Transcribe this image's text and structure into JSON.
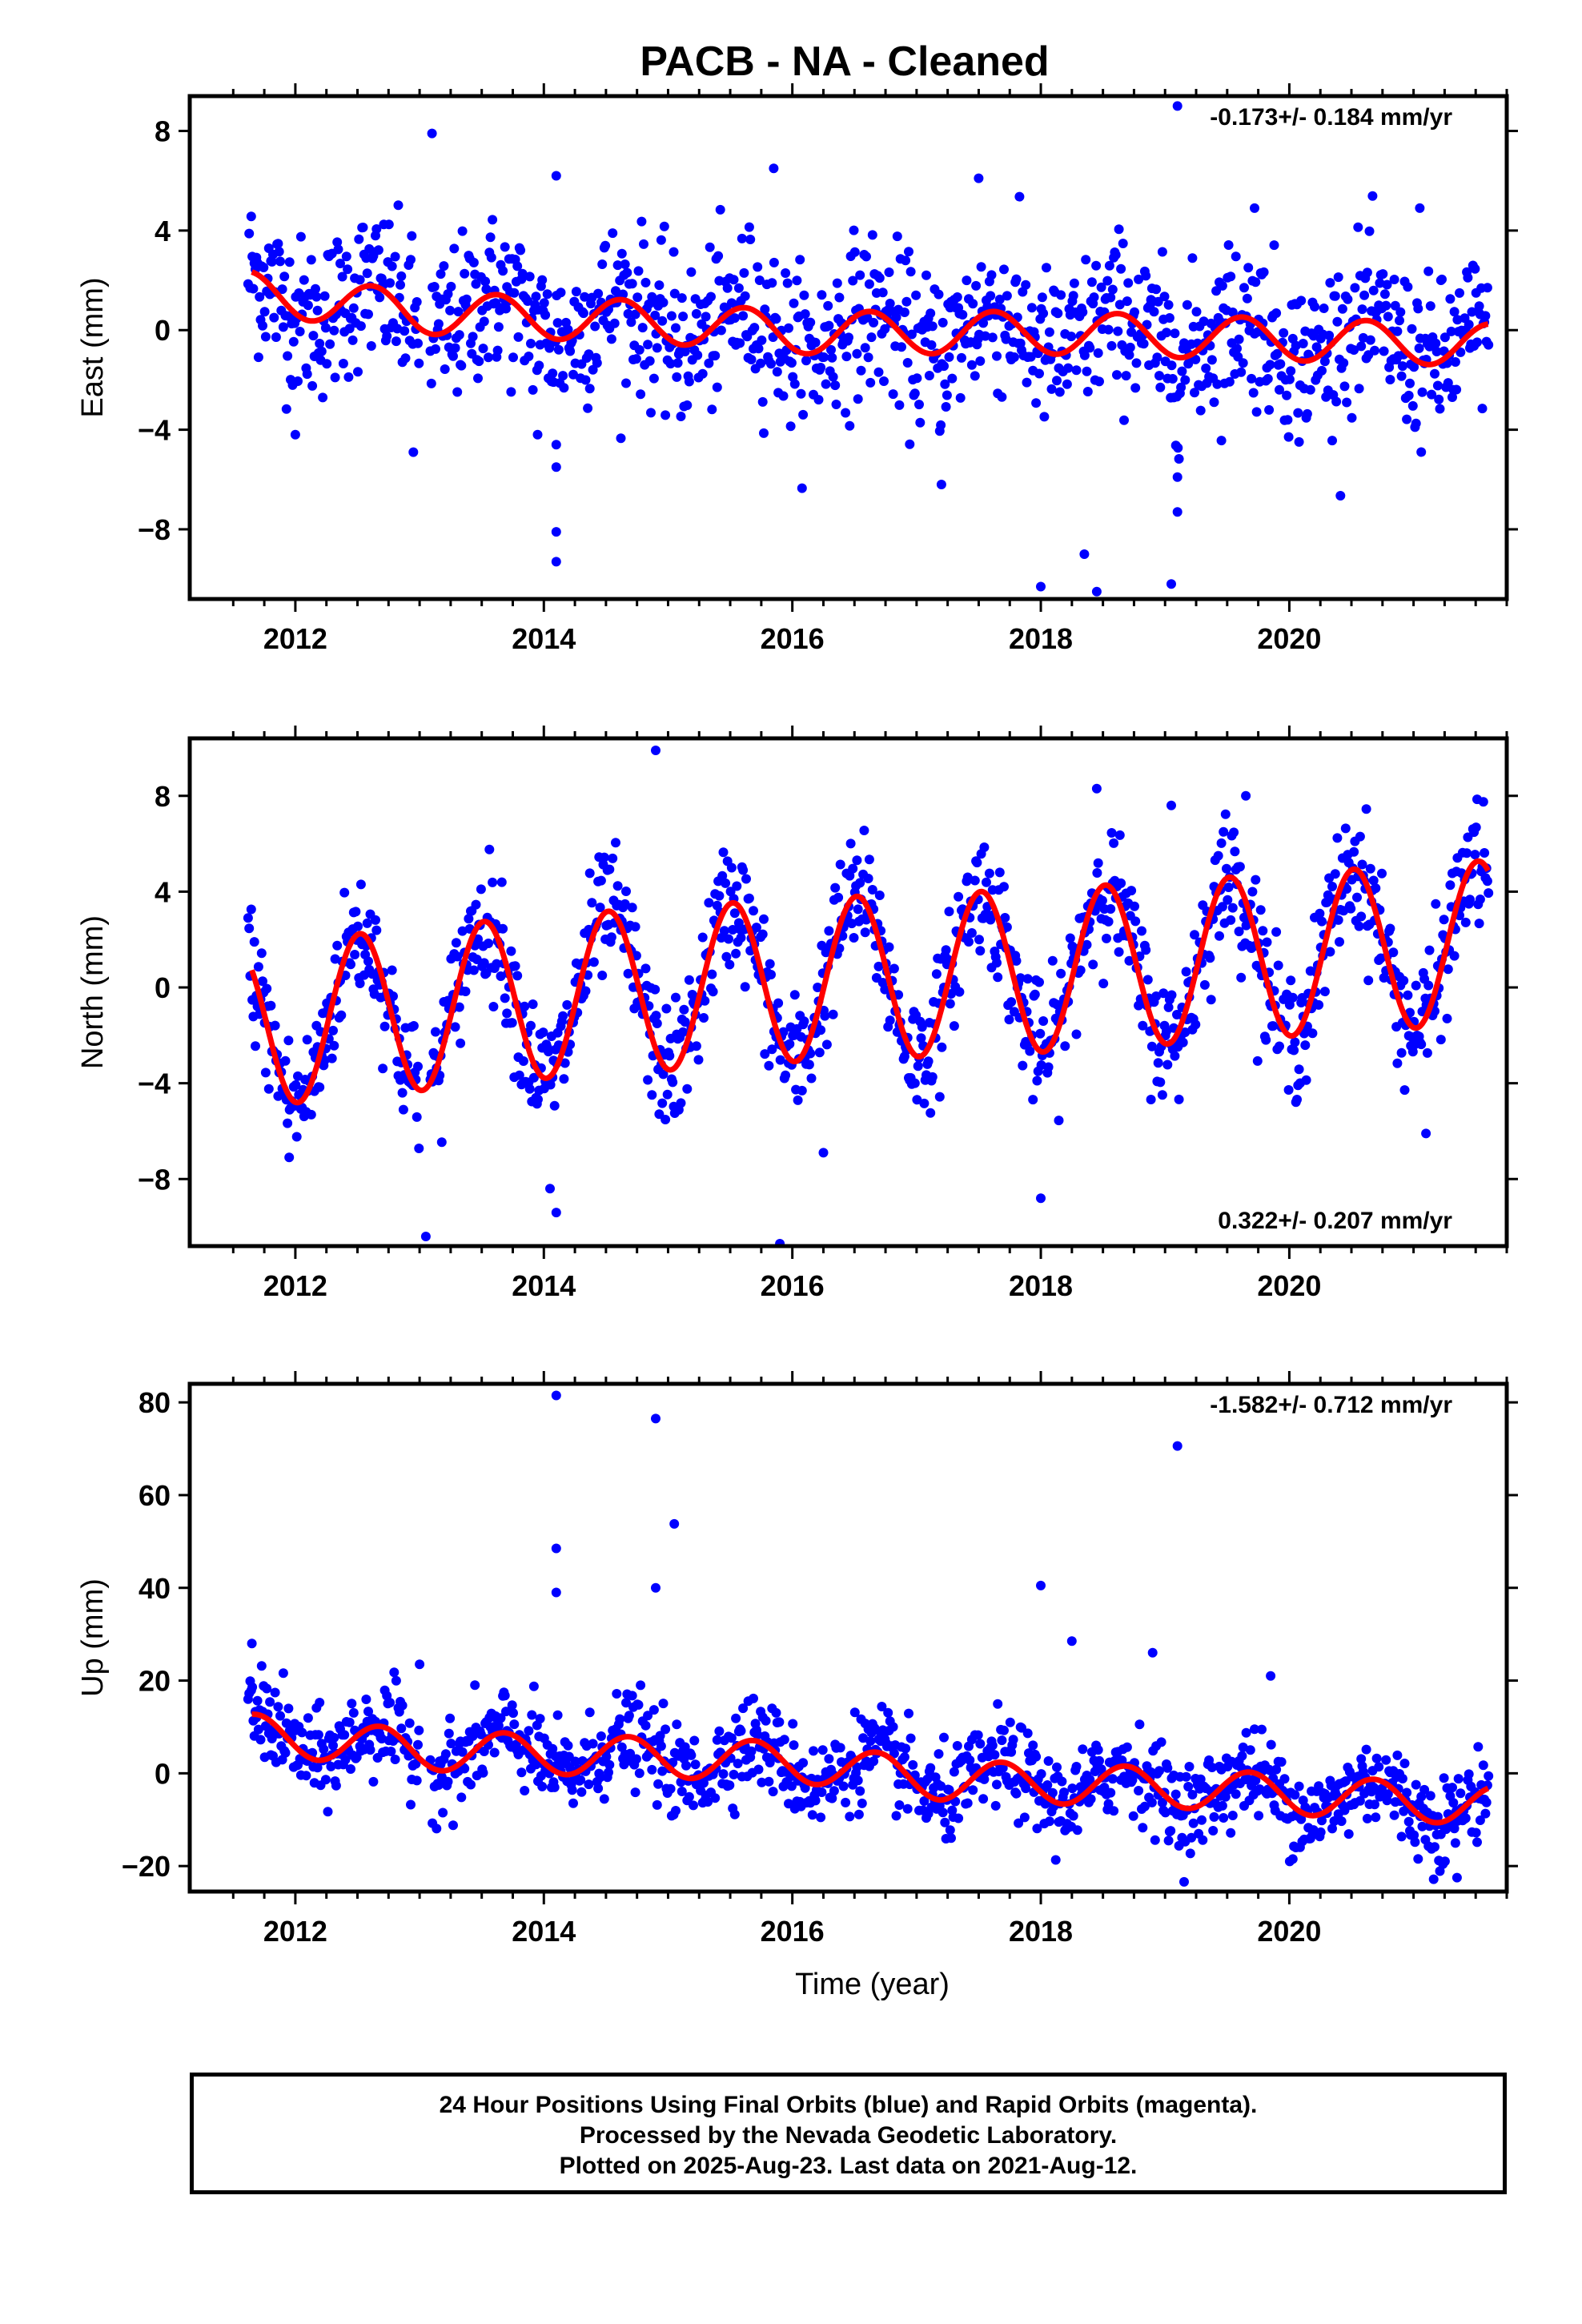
{
  "title": "PACB  - NA - Cleaned",
  "footer": {
    "line1": "24 Hour Positions Using Final Orbits (blue) and Rapid Orbits (magenta).",
    "line2": "Processed by the Nevada Geodetic Laboratory.",
    "line3": "Plotted on 2025-Aug-23. Last data on 2021-Aug-12."
  },
  "colors": {
    "points": "#0000ff",
    "model": "#ff0000",
    "axes": "#000000"
  },
  "chart_data": [
    {
      "type": "scatter",
      "component": "east",
      "ylabel": "East (mm)",
      "xlim": [
        2011.15,
        2021.75
      ],
      "ylim": [
        -10.8,
        9.4
      ],
      "yticks": [
        -8,
        -4,
        0,
        4,
        8
      ],
      "yticklabels": [
        "−8",
        "−4",
        "0",
        "4",
        "8"
      ],
      "xticks": [
        2012,
        2014,
        2016,
        2018,
        2020
      ],
      "xticklabels": [
        "2012",
        "2014",
        "2016",
        "2018",
        "2020"
      ],
      "rate_label": "-0.173+/- 0.184 mm/yr",
      "rate_position": "top-right",
      "fit": {
        "amplitude": 0.85,
        "phase_peak_year": 0.62,
        "trend_points": [
          [
            2011.65,
            1.5
          ],
          [
            2013.0,
            0.7
          ],
          [
            2015.0,
            0.3
          ],
          [
            2016.0,
            -0.1
          ],
          [
            2018.0,
            -0.1
          ],
          [
            2021.6,
            -0.6
          ]
        ]
      },
      "scatter_sd": 1.6,
      "outliers": [
        [
          2013.1,
          7.9
        ],
        [
          2014.1,
          6.2
        ],
        [
          2015.85,
          6.5
        ],
        [
          2017.5,
          6.1
        ],
        [
          2019.1,
          9.0
        ],
        [
          2019.72,
          4.9
        ],
        [
          2021.05,
          4.9
        ],
        [
          2012.95,
          -4.9
        ],
        [
          2014.1,
          -8.1
        ],
        [
          2014.1,
          -9.3
        ],
        [
          2014.1,
          -5.5
        ],
        [
          2014.1,
          -4.6
        ],
        [
          2013.95,
          -4.2
        ],
        [
          2017.2,
          -6.2
        ],
        [
          2018.0,
          -10.3
        ],
        [
          2018.35,
          -9.0
        ],
        [
          2018.45,
          -10.5
        ],
        [
          2019.05,
          -10.2
        ],
        [
          2019.1,
          -7.3
        ],
        [
          2019.1,
          -5.9
        ],
        [
          2012.0,
          -4.2
        ]
      ]
    },
    {
      "type": "scatter",
      "component": "north",
      "ylabel": "North (mm)",
      "xlim": [
        2011.15,
        2021.75
      ],
      "ylim": [
        -10.8,
        10.4
      ],
      "yticks": [
        -8,
        -4,
        0,
        4,
        8
      ],
      "yticklabels": [
        "−8",
        "−4",
        "0",
        "4",
        "8"
      ],
      "xticks": [
        2012,
        2014,
        2016,
        2018,
        2020
      ],
      "xticklabels": [
        "2012",
        "2014",
        "2016",
        "2018",
        "2020"
      ],
      "rate_label": "0.322+/- 0.207 mm/yr",
      "rate_position": "bottom-right",
      "fit": {
        "amplitude": 3.4,
        "phase_peak_year": 0.52,
        "trend_points": [
          [
            2011.65,
            -1.6
          ],
          [
            2014.0,
            -0.4
          ],
          [
            2016.0,
            0.3
          ],
          [
            2018.0,
            0.7
          ],
          [
            2021.6,
            1.9
          ]
        ]
      },
      "scatter_sd": 1.3,
      "outliers": [
        [
          2014.9,
          9.9
        ],
        [
          2018.45,
          8.3
        ],
        [
          2019.05,
          7.6
        ],
        [
          2019.65,
          8.0
        ],
        [
          2013.05,
          -10.4
        ],
        [
          2015.9,
          -10.7
        ],
        [
          2018.0,
          -8.8
        ],
        [
          2014.1,
          -9.4
        ],
        [
          2016.25,
          -6.9
        ],
        [
          2021.1,
          -6.1
        ],
        [
          2011.95,
          -7.1
        ],
        [
          2014.05,
          -8.4
        ]
      ]
    },
    {
      "type": "scatter",
      "component": "up",
      "ylabel": "Up (mm)",
      "xlabel": "Time (year)",
      "xlim": [
        2011.15,
        2021.75
      ],
      "ylim": [
        -25.5,
        84
      ],
      "yticks": [
        -20,
        0,
        20,
        40,
        60,
        80
      ],
      "yticklabels": [
        "−20",
        "0",
        "20",
        "40",
        "60",
        "80"
      ],
      "xticks": [
        2012,
        2014,
        2016,
        2018,
        2020
      ],
      "xticklabels": [
        "2012",
        "2014",
        "2016",
        "2018",
        "2020"
      ],
      "rate_label": "-1.582+/- 0.712 mm/yr",
      "rate_position": "top-right",
      "fit": {
        "amplitude": 4.3,
        "phase_peak_year": 0.68,
        "trend_points": [
          [
            2011.65,
            8.5
          ],
          [
            2013.0,
            5.0
          ],
          [
            2016.0,
            2.5
          ],
          [
            2017.2,
            -1.5
          ],
          [
            2019.0,
            -3.0
          ],
          [
            2021.6,
            -7.0
          ]
        ]
      },
      "scatter_sd": 4.8,
      "outliers": [
        [
          2014.1,
          81.5
        ],
        [
          2014.1,
          48.5
        ],
        [
          2014.1,
          39.0
        ],
        [
          2014.9,
          76.5
        ],
        [
          2014.9,
          40.0
        ],
        [
          2015.05,
          53.8
        ],
        [
          2019.1,
          70.6
        ],
        [
          2018.0,
          40.5
        ],
        [
          2018.25,
          28.5
        ],
        [
          2018.9,
          26.0
        ],
        [
          2011.65,
          28.0
        ],
        [
          2013.0,
          23.5
        ],
        [
          2019.85,
          21.0
        ],
        [
          2021.35,
          -22.5
        ]
      ]
    }
  ]
}
